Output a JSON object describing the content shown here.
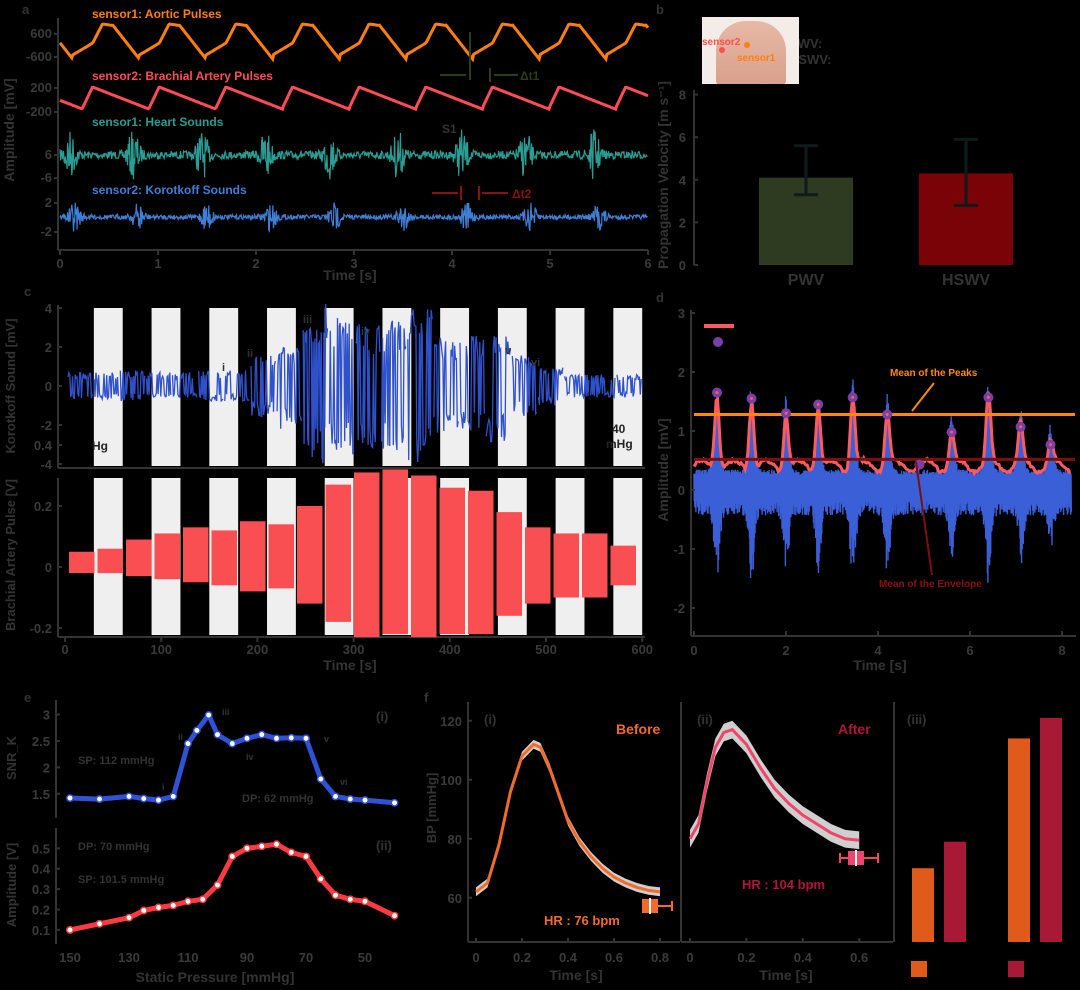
{
  "figure": {
    "panels": [
      "a",
      "b",
      "c",
      "d",
      "e",
      "f"
    ]
  },
  "chart_data": [
    {
      "id": "a",
      "type": "line",
      "title": "",
      "xlabel": "Time [s]",
      "ylabel": "Amplitude [mV]",
      "xlim": [
        0,
        6
      ],
      "xticks": [
        0,
        1,
        2,
        3,
        4,
        5,
        6
      ],
      "series": [
        {
          "name": "sensor1: Aortic Pulses",
          "color": "#ff7f0e",
          "yticks": [
            "600",
            "-600"
          ]
        },
        {
          "name": "sensor2: Brachial Artery Pulses",
          "color": "#ff4c55",
          "yticks": [
            "200",
            "-200"
          ]
        },
        {
          "name": "sensor1: Heart Sounds",
          "color": "#2a9d94",
          "yticks": [
            "6",
            "-6"
          ]
        },
        {
          "name": "sensor2: Korotkoff Sounds",
          "color": "#3f7fd6",
          "yticks": [
            "2",
            "-2"
          ]
        }
      ],
      "annotations": [
        "Δt1",
        "Δt2",
        "S1"
      ],
      "beat_times_s": [
        0.1,
        0.75,
        1.45,
        2.1,
        2.75,
        3.45,
        4.1,
        4.75,
        5.45
      ]
    },
    {
      "id": "b",
      "type": "bar",
      "ylabel": "Propagation Velocity [m s⁻¹]",
      "categories": [
        "PWV",
        "HSWV"
      ],
      "values": [
        4.1,
        4.3
      ],
      "errors_low": [
        3.3,
        2.8
      ],
      "errors_high": [
        5.6,
        5.9
      ],
      "colors": [
        "#2f3b20",
        "#7a0308"
      ],
      "ylim": [
        0,
        8
      ],
      "yticks": [
        0,
        2,
        4,
        6,
        8
      ],
      "inset": {
        "labels": [
          "sensor2",
          "sensor1"
        ],
        "legend": [
          "PWV:",
          "HSWV:"
        ]
      }
    },
    {
      "id": "c",
      "type": "line",
      "xlabel": "Time [s]",
      "xlim": [
        0,
        600
      ],
      "xticks": [
        0,
        100,
        200,
        300,
        400,
        500,
        600
      ],
      "top": {
        "ylabel": "Korotkoff Sound [mV]",
        "ylim": [
          -5,
          5
        ],
        "yticks": [
          4,
          2,
          0,
          -2,
          -4
        ],
        "color": "#2f52cc",
        "annotations": [
          "i",
          "ii",
          "iii",
          "iv",
          "v",
          "vi"
        ],
        "left_note": "Hg",
        "right_note": [
          "40",
          "mHg"
        ]
      },
      "bottom": {
        "ylabel": "Brachial Artery Pulse [V]",
        "ylim": [
          -0.33,
          0.42
        ],
        "yticks": [
          0.4,
          0.2,
          0,
          -0.2
        ],
        "color": "#fa4f52"
      },
      "shaded_bands_s": [
        [
          30,
          60
        ],
        [
          90,
          120
        ],
        [
          150,
          180
        ],
        [
          210,
          240
        ],
        [
          270,
          300
        ],
        [
          330,
          360
        ],
        [
          390,
          420
        ],
        [
          450,
          480
        ],
        [
          510,
          540
        ],
        [
          570,
          600
        ]
      ],
      "segment_amplitudes_top": [
        0.7,
        0.7,
        0.8,
        0.7,
        0.7,
        0.8,
        0.8,
        1.6,
        2.2,
        4.2,
        3.6,
        3.2,
        3.4,
        4.0,
        2.5,
        2.6,
        2.9,
        1.6,
        1.0,
        0.6,
        0.6,
        0.6
      ],
      "segment_amplitudes_bottom_pos": [
        0.05,
        0.06,
        0.09,
        0.11,
        0.13,
        0.12,
        0.15,
        0.14,
        0.2,
        0.27,
        0.31,
        0.32,
        0.3,
        0.26,
        0.25,
        0.18,
        0.13,
        0.11,
        0.11,
        0.07
      ],
      "segment_amplitudes_bottom_neg": [
        0.02,
        0.02,
        0.03,
        0.04,
        0.05,
        0.06,
        0.08,
        0.07,
        0.12,
        0.18,
        0.23,
        0.22,
        0.23,
        0.22,
        0.22,
        0.16,
        0.12,
        0.1,
        0.1,
        0.06
      ]
    },
    {
      "id": "d",
      "type": "line",
      "xlabel": "Time [s]",
      "ylabel": "Amplitude [mV]",
      "xlim": [
        0,
        8.2
      ],
      "ylim": [
        -2.4,
        3
      ],
      "xticks": [
        0,
        2,
        4,
        6,
        8
      ],
      "yticks": [
        3,
        2,
        1,
        0,
        -1,
        -2
      ],
      "mean_of_peaks": 1.28,
      "mean_of_envelope": 0.52,
      "peak_times_s": [
        0.5,
        1.25,
        2.0,
        2.7,
        3.45,
        4.2,
        5.6,
        6.4,
        7.1,
        7.75
      ],
      "peak_values": [
        1.65,
        1.55,
        1.3,
        1.45,
        1.57,
        1.28,
        0.98,
        1.57,
        1.07,
        0.77
      ],
      "extra_marker": {
        "t": 4.9,
        "v": 0.43
      },
      "annotations": [
        "Mean of the Peaks",
        "Mean of the Envelope"
      ],
      "colors": {
        "signal": "#3a5fd6",
        "envelope": "#ff5a5f",
        "peaks": "#7a3fa8",
        "mean_peaks": "#ff8a00",
        "mean_env": "#7a1010"
      }
    },
    {
      "id": "e",
      "type": "line",
      "xlabel": "Static Pressure [mmHg]",
      "x": [
        150,
        140,
        130,
        125,
        120,
        115,
        112,
        110,
        105,
        100,
        95,
        90,
        85,
        80,
        75,
        70,
        65,
        60,
        55,
        50,
        40
      ],
      "xticks": [
        150,
        130,
        110,
        90,
        70,
        50
      ],
      "subplots": [
        {
          "label": "(i)",
          "ylabel": "SNR_K",
          "ylim": [
            1.25,
            3.2
          ],
          "yticks": [
            3,
            2.5,
            2,
            1.5
          ],
          "color": "#2f52d6",
          "x": [
            150,
            140,
            130,
            125,
            120,
            115,
            110,
            107,
            103,
            100,
            95,
            90,
            85,
            80,
            75,
            70,
            65,
            60,
            55,
            50,
            40
          ],
          "values": [
            1.42,
            1.4,
            1.45,
            1.41,
            1.38,
            1.45,
            2.45,
            2.7,
            2.99,
            2.62,
            2.45,
            2.55,
            2.62,
            2.55,
            2.56,
            2.55,
            1.78,
            1.45,
            1.4,
            1.38,
            1.33
          ],
          "annotations": {
            "SP": "SP: 112 mmHg",
            "DP": "DP: 62 mmHg",
            "roman": [
              "i",
              "ii",
              "iii",
              "iv",
              "v",
              "vi"
            ]
          }
        },
        {
          "label": "(ii)",
          "ylabel": "Amplitude [V]",
          "ylim": [
            0.08,
            0.58
          ],
          "yticks": [
            0.5,
            0.4,
            0.3,
            0.2,
            0.1
          ],
          "color": "#ff3b42",
          "x": [
            150,
            140,
            130,
            125,
            120,
            115,
            110,
            105,
            100,
            95,
            90,
            85,
            80,
            75,
            70,
            65,
            60,
            55,
            50,
            40
          ],
          "values": [
            0.1,
            0.13,
            0.16,
            0.195,
            0.21,
            0.22,
            0.24,
            0.25,
            0.32,
            0.46,
            0.5,
            0.51,
            0.52,
            0.48,
            0.46,
            0.35,
            0.27,
            0.25,
            0.24,
            0.17
          ],
          "annotations": {
            "DP": "DP: 70 mmHg",
            "SP": "SP: 101.5 mmHg"
          }
        }
      ]
    },
    {
      "id": "f",
      "type": "line",
      "subplots": [
        {
          "label": "(i)",
          "title": "Before",
          "xlabel": "Time [s]",
          "ylabel": "BP [mmHg]",
          "xlim": [
            0,
            0.87
          ],
          "ylim": [
            45,
            125
          ],
          "xticks": [
            0,
            0.2,
            0.4,
            0.6,
            0.8
          ],
          "yticks": [
            60,
            80,
            100,
            120
          ],
          "color": "#f26b2a",
          "hr": "HR : 76 bpm",
          "t": [
            0,
            0.05,
            0.1,
            0.15,
            0.2,
            0.25,
            0.28,
            0.32,
            0.36,
            0.4,
            0.45,
            0.5,
            0.55,
            0.6,
            0.65,
            0.7,
            0.75,
            0.8
          ],
          "bp": [
            62,
            65,
            78,
            96,
            108,
            112,
            111,
            104,
            95,
            86,
            79,
            74,
            70,
            67,
            65,
            63.5,
            62.5,
            62
          ]
        },
        {
          "label": "(ii)",
          "title": "After",
          "xlabel": "Time [s]",
          "xlim": [
            -0.02,
            0.67
          ],
          "ylim": [
            45,
            125
          ],
          "xticks": [
            0,
            0.2,
            0.4,
            0.6
          ],
          "color": "#f0456a",
          "hr": "HR : 104 bpm",
          "t": [
            0,
            0.03,
            0.06,
            0.09,
            0.12,
            0.15,
            0.2,
            0.25,
            0.3,
            0.35,
            0.4,
            0.45,
            0.5,
            0.55,
            0.6
          ],
          "bp": [
            80,
            85,
            99,
            111,
            116,
            117,
            112,
            104,
            97,
            92,
            88,
            85,
            82,
            80,
            79.5
          ]
        },
        {
          "label": "(iii)",
          "type": "bar",
          "values_before": [
            25,
            69
          ],
          "values_after": [
            34,
            76
          ],
          "ylim": [
            0,
            80
          ],
          "colors": [
            "#e05a1c",
            "#a81935"
          ]
        }
      ]
    }
  ],
  "text": {
    "a_s1": "sensor1: Aortic Pulses",
    "a_s2": "sensor2: Brachial Artery Pulses",
    "a_s3": "sensor1: Heart Sounds",
    "a_s4": "sensor2: Korotkoff Sounds",
    "a_dt1": "Δt1",
    "a_dt2": "Δt2",
    "a_S1": "S1",
    "a_xlabel": "Time [s]",
    "a_ylabel": "Amplitude [mV]",
    "b_ylabel": "Propagation Velocity [m s⁻¹]",
    "b_pwv": "PWV",
    "b_hswv": "HSWV",
    "b_inset_s1": "sensor1",
    "b_inset_s2": "sensor2",
    "b_leg1": "PWV:",
    "b_leg2": "HSWV:",
    "c_ylabel_top": "Korotkoff Sound [mV]",
    "c_ylabel_bot": "Brachial Artery Pulse [V]",
    "c_xlabel": "Time [s]",
    "c_hg": "Hg",
    "c_40": "40",
    "c_mhg": "mHg",
    "d_ylabel": "Amplitude [mV]",
    "d_xlabel": "Time [s]",
    "d_mean_peaks": "Mean of the Peaks",
    "d_mean_env": "Mean of the Envelope",
    "e_ylabel1": "SNR_K",
    "e_ylabel2": "Amplitude [V]",
    "e_xlabel": "Static Pressure [mmHg]",
    "e_i": "(i)",
    "e_ii": "(ii)",
    "e_sp1": "SP: 112 mmHg",
    "e_dp1": "DP: 62 mmHg",
    "e_dp2": "DP: 70 mmHg",
    "e_sp2": "SP: 101.5 mmHg",
    "f_ylabel": "BP [mmHg]",
    "f_xlabel": "Time [s]",
    "f_i": "(i)",
    "f_ii": "(ii)",
    "f_iii": "(iii)",
    "f_before": "Before",
    "f_after": "After",
    "f_hr1": "HR : 76 bpm",
    "f_hr2": "HR : 104 bpm"
  }
}
